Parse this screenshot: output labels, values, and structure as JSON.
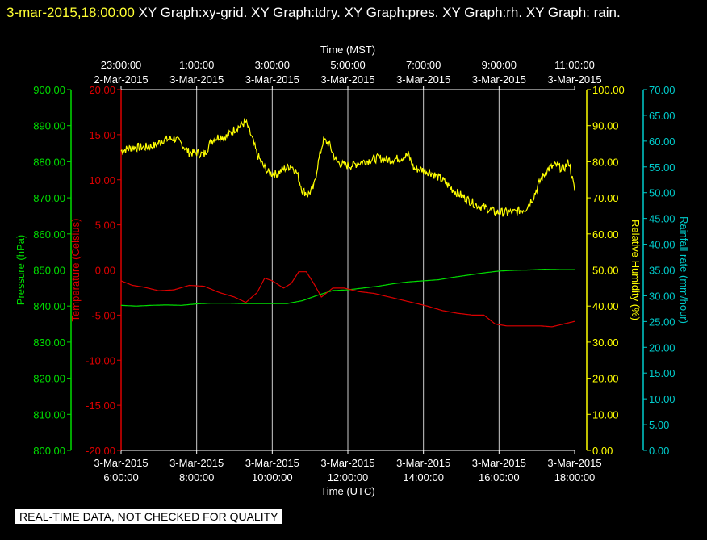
{
  "header": {
    "timestamp": "3-mar-2015,18:00:00",
    "graphs": " XY Graph:xy-grid.  XY Graph:tdry.  XY Graph:pres.  XY Graph:rh.  XY Graph: rain."
  },
  "footer": {
    "notice": "REAL-TIME DATA, NOT CHECKED FOR QUALITY"
  },
  "colors": {
    "pressure": "#00dd00",
    "temperature": "#dd0000",
    "humidity": "#ffff00",
    "rain": "#00cccc",
    "grid": "#cccccc",
    "text": "#ffffff"
  },
  "chart_data": {
    "type": "line",
    "grid": true,
    "x_top_label": "Time (MST)",
    "x_bottom_label": "Time (UTC)",
    "x_bottom_ticks": [
      {
        "d": "3-Mar-2015",
        "t": "6:00:00"
      },
      {
        "d": "3-Mar-2015",
        "t": "8:00:00"
      },
      {
        "d": "3-Mar-2015",
        "t": "10:00:00"
      },
      {
        "d": "3-Mar-2015",
        "t": "12:00:00"
      },
      {
        "d": "3-Mar-2015",
        "t": "14:00:00"
      },
      {
        "d": "3-Mar-2015",
        "t": "16:00:00"
      },
      {
        "d": "3-Mar-2015",
        "t": "18:00:00"
      }
    ],
    "x_top_ticks": [
      {
        "t": "23:00:00",
        "d": "2-Mar-2015"
      },
      {
        "t": "1:00:00",
        "d": "3-Mar-2015"
      },
      {
        "t": "3:00:00",
        "d": "3-Mar-2015"
      },
      {
        "t": "5:00:00",
        "d": "3-Mar-2015"
      },
      {
        "t": "7:00:00",
        "d": "3-Mar-2015"
      },
      {
        "t": "9:00:00",
        "d": "3-Mar-2015"
      },
      {
        "t": "11:00:00",
        "d": "3-Mar-2015"
      }
    ],
    "x_hours_utc": [
      6,
      18
    ],
    "axes": {
      "pressure": {
        "label": "Pressure (hPa)",
        "ylim": [
          800,
          900
        ],
        "ticks": [
          "800.00",
          "810.00",
          "820.00",
          "830.00",
          "840.00",
          "850.00",
          "860.00",
          "870.00",
          "880.00",
          "890.00",
          "900.00"
        ]
      },
      "temperature": {
        "label": "Temperature (Celsius)",
        "ylim": [
          -20,
          20
        ],
        "ticks": [
          "-20.00",
          "-15.00",
          "-10.00",
          "-5.00",
          "0.00",
          "5.00",
          "10.00",
          "15.00",
          "20.00"
        ]
      },
      "humidity": {
        "label": "Relative Humidity (%)",
        "ylim": [
          0,
          100
        ],
        "ticks": [
          "0.00",
          "10.00",
          "20.00",
          "30.00",
          "40.00",
          "50.00",
          "60.00",
          "70.00",
          "80.00",
          "90.00",
          "100.00"
        ]
      },
      "rain": {
        "label": "Rainfall rate (mm/hour)",
        "ylim": [
          0,
          70
        ],
        "ticks": [
          "0.00",
          "5.00",
          "10.00",
          "15.00",
          "20.00",
          "25.00",
          "30.00",
          "35.00",
          "40.00",
          "45.00",
          "50.00",
          "55.00",
          "60.00",
          "65.00",
          "70.00"
        ]
      }
    },
    "series": [
      {
        "key": "humidity",
        "noise": 1.2,
        "x": [
          6,
          6.3,
          6.6,
          6.9,
          7.1,
          7.4,
          7.6,
          7.8,
          8.0,
          8.2,
          8.4,
          8.6,
          8.8,
          9.0,
          9.15,
          9.3,
          9.45,
          9.6,
          9.75,
          9.9,
          10.1,
          10.3,
          10.5,
          10.65,
          10.8,
          10.95,
          11.1,
          11.2,
          11.35,
          11.5,
          11.7,
          11.9,
          12.1,
          12.4,
          12.8,
          13.1,
          13.4,
          13.6,
          13.75,
          13.9,
          14.2,
          14.5,
          14.8,
          15.1,
          15.4,
          15.7,
          15.9,
          16.1,
          16.4,
          16.7,
          16.9,
          17.1,
          17.3,
          17.5,
          17.7,
          17.85,
          18
        ],
        "y": [
          83,
          84,
          84,
          84.5,
          86,
          86.5,
          85,
          82.5,
          82.5,
          82,
          86,
          87,
          87,
          89,
          90,
          91,
          87,
          82,
          79,
          77,
          76.5,
          78,
          79,
          77,
          72,
          71,
          73,
          79,
          86,
          85,
          80,
          79,
          79,
          80,
          81,
          80.5,
          81,
          82,
          78,
          78,
          77,
          75,
          72,
          70,
          68,
          67,
          66,
          66,
          66,
          67,
          70,
          75,
          78,
          79,
          78,
          80,
          72
        ]
      },
      {
        "key": "pressure",
        "x": [
          6,
          6.4,
          6.8,
          7.2,
          7.6,
          8.0,
          8.4,
          8.8,
          9.2,
          9.6,
          10.0,
          10.4,
          10.8,
          11.2,
          11.6,
          12.0,
          12.4,
          12.8,
          13.2,
          13.6,
          14.0,
          14.4,
          14.8,
          15.2,
          15.6,
          16.0,
          16.4,
          16.8,
          17.2,
          17.6,
          18
        ],
        "y": [
          840.2,
          840,
          840.2,
          840.3,
          840.2,
          840.6,
          840.8,
          840.8,
          840.7,
          840.7,
          840.7,
          840.7,
          841.5,
          843,
          844.3,
          844.5,
          845,
          845.5,
          846.2,
          846.7,
          847,
          847.3,
          848,
          848.6,
          849.2,
          849.7,
          849.9,
          850,
          850.2,
          850.1,
          850.1
        ]
      },
      {
        "key": "temperature",
        "x": [
          6,
          6.3,
          6.6,
          7.0,
          7.4,
          7.8,
          8.2,
          8.6,
          9.0,
          9.3,
          9.6,
          9.8,
          10.0,
          10.3,
          10.5,
          10.7,
          10.9,
          11.1,
          11.3,
          11.6,
          11.9,
          12.3,
          12.7,
          13.1,
          13.5,
          13.8,
          14.1,
          14.5,
          14.9,
          15.3,
          15.6,
          15.9,
          16.2,
          16.5,
          16.8,
          17.1,
          17.4,
          17.7,
          18
        ],
        "y": [
          -1.2,
          -1.7,
          -1.9,
          -2.3,
          -2.2,
          -1.7,
          -1.8,
          -2.5,
          -3,
          -3.6,
          -2.5,
          -0.9,
          -1.2,
          -2,
          -1.5,
          -0.2,
          -0.2,
          -1.5,
          -3,
          -2,
          -2,
          -2.4,
          -2.6,
          -3,
          -3.4,
          -3.7,
          -4,
          -4.5,
          -4.8,
          -5,
          -5,
          -6,
          -6.2,
          -6.2,
          -6.2,
          -6.2,
          -6.3,
          -6,
          -5.7
        ]
      }
    ]
  }
}
